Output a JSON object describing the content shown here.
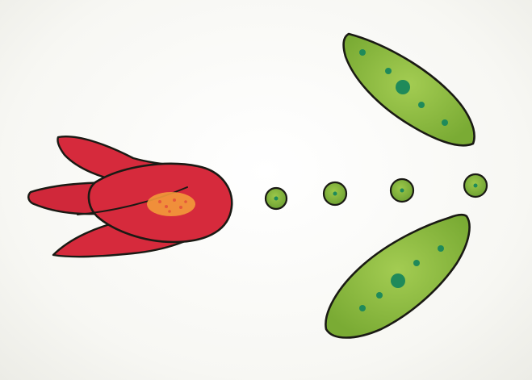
{
  "colors": {
    "background": "#f9f9f6",
    "outline": "#1a1a14",
    "flower_red": "#d62a3c",
    "flower_red_dark": "#b81f31",
    "flower_tail_orange": "#f08a2a",
    "flower_spot_orange": "#f39a3a",
    "leaf_green": "#86b53a",
    "leaf_green_light": "#9cc84a",
    "leaf_spot": "#1f8a5a",
    "dot_green": "#7fb23a"
  },
  "icons": {
    "flower": "red-tulip-flower-icon",
    "leaf_top": "green-leaf-icon",
    "leaf_bottom": "green-leaf-icon",
    "dots": "green-dot-icon"
  }
}
